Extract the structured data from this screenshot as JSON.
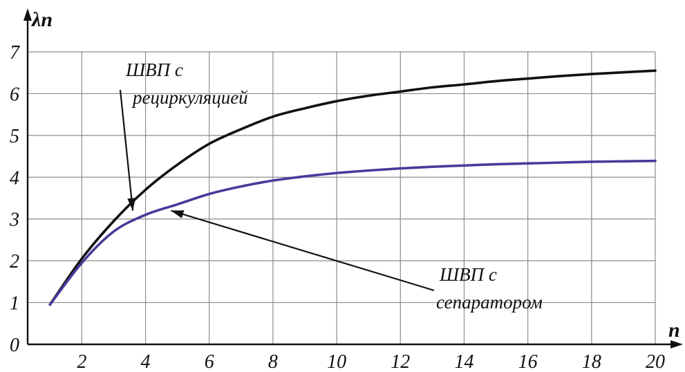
{
  "chart_data": {
    "type": "line",
    "xlabel": "n",
    "ylabel": "λn",
    "xlim": [
      0.3,
      20
    ],
    "ylim": [
      0,
      7
    ],
    "x_ticks": [
      2,
      4,
      6,
      8,
      10,
      12,
      14,
      16,
      18,
      20
    ],
    "y_ticks": [
      0,
      1,
      2,
      3,
      4,
      5,
      6,
      7
    ],
    "grid": true,
    "series": [
      {
        "name": "ШВП с рециркуляцией",
        "color": "#111111",
        "x": [
          1,
          2,
          3,
          4,
          5,
          6,
          7,
          8,
          9,
          10,
          11,
          12,
          13,
          14,
          15,
          16,
          17,
          18,
          19,
          20
        ],
        "y": [
          0.95,
          2.05,
          2.95,
          3.7,
          4.3,
          4.8,
          5.15,
          5.45,
          5.65,
          5.82,
          5.95,
          6.05,
          6.15,
          6.22,
          6.3,
          6.36,
          6.42,
          6.47,
          6.51,
          6.55
        ]
      },
      {
        "name": "ШВП с сепаратором",
        "color": "#4a3a9a",
        "x": [
          1,
          2,
          3,
          4,
          5,
          6,
          7,
          8,
          9,
          10,
          11,
          12,
          13,
          14,
          15,
          16,
          17,
          18,
          19,
          20
        ],
        "y": [
          0.95,
          1.95,
          2.7,
          3.1,
          3.35,
          3.6,
          3.78,
          3.92,
          4.02,
          4.1,
          4.16,
          4.21,
          4.25,
          4.28,
          4.31,
          4.33,
          4.35,
          4.37,
          4.38,
          4.39
        ]
      }
    ],
    "annotations": [
      {
        "lines": [
          "ШВП с",
          "рециркуляцией"
        ],
        "target": [
          3.6,
          3.2
        ]
      },
      {
        "lines": [
          "ШВП с",
          "сепаратором"
        ],
        "target": [
          4.8,
          3.2
        ]
      }
    ]
  }
}
